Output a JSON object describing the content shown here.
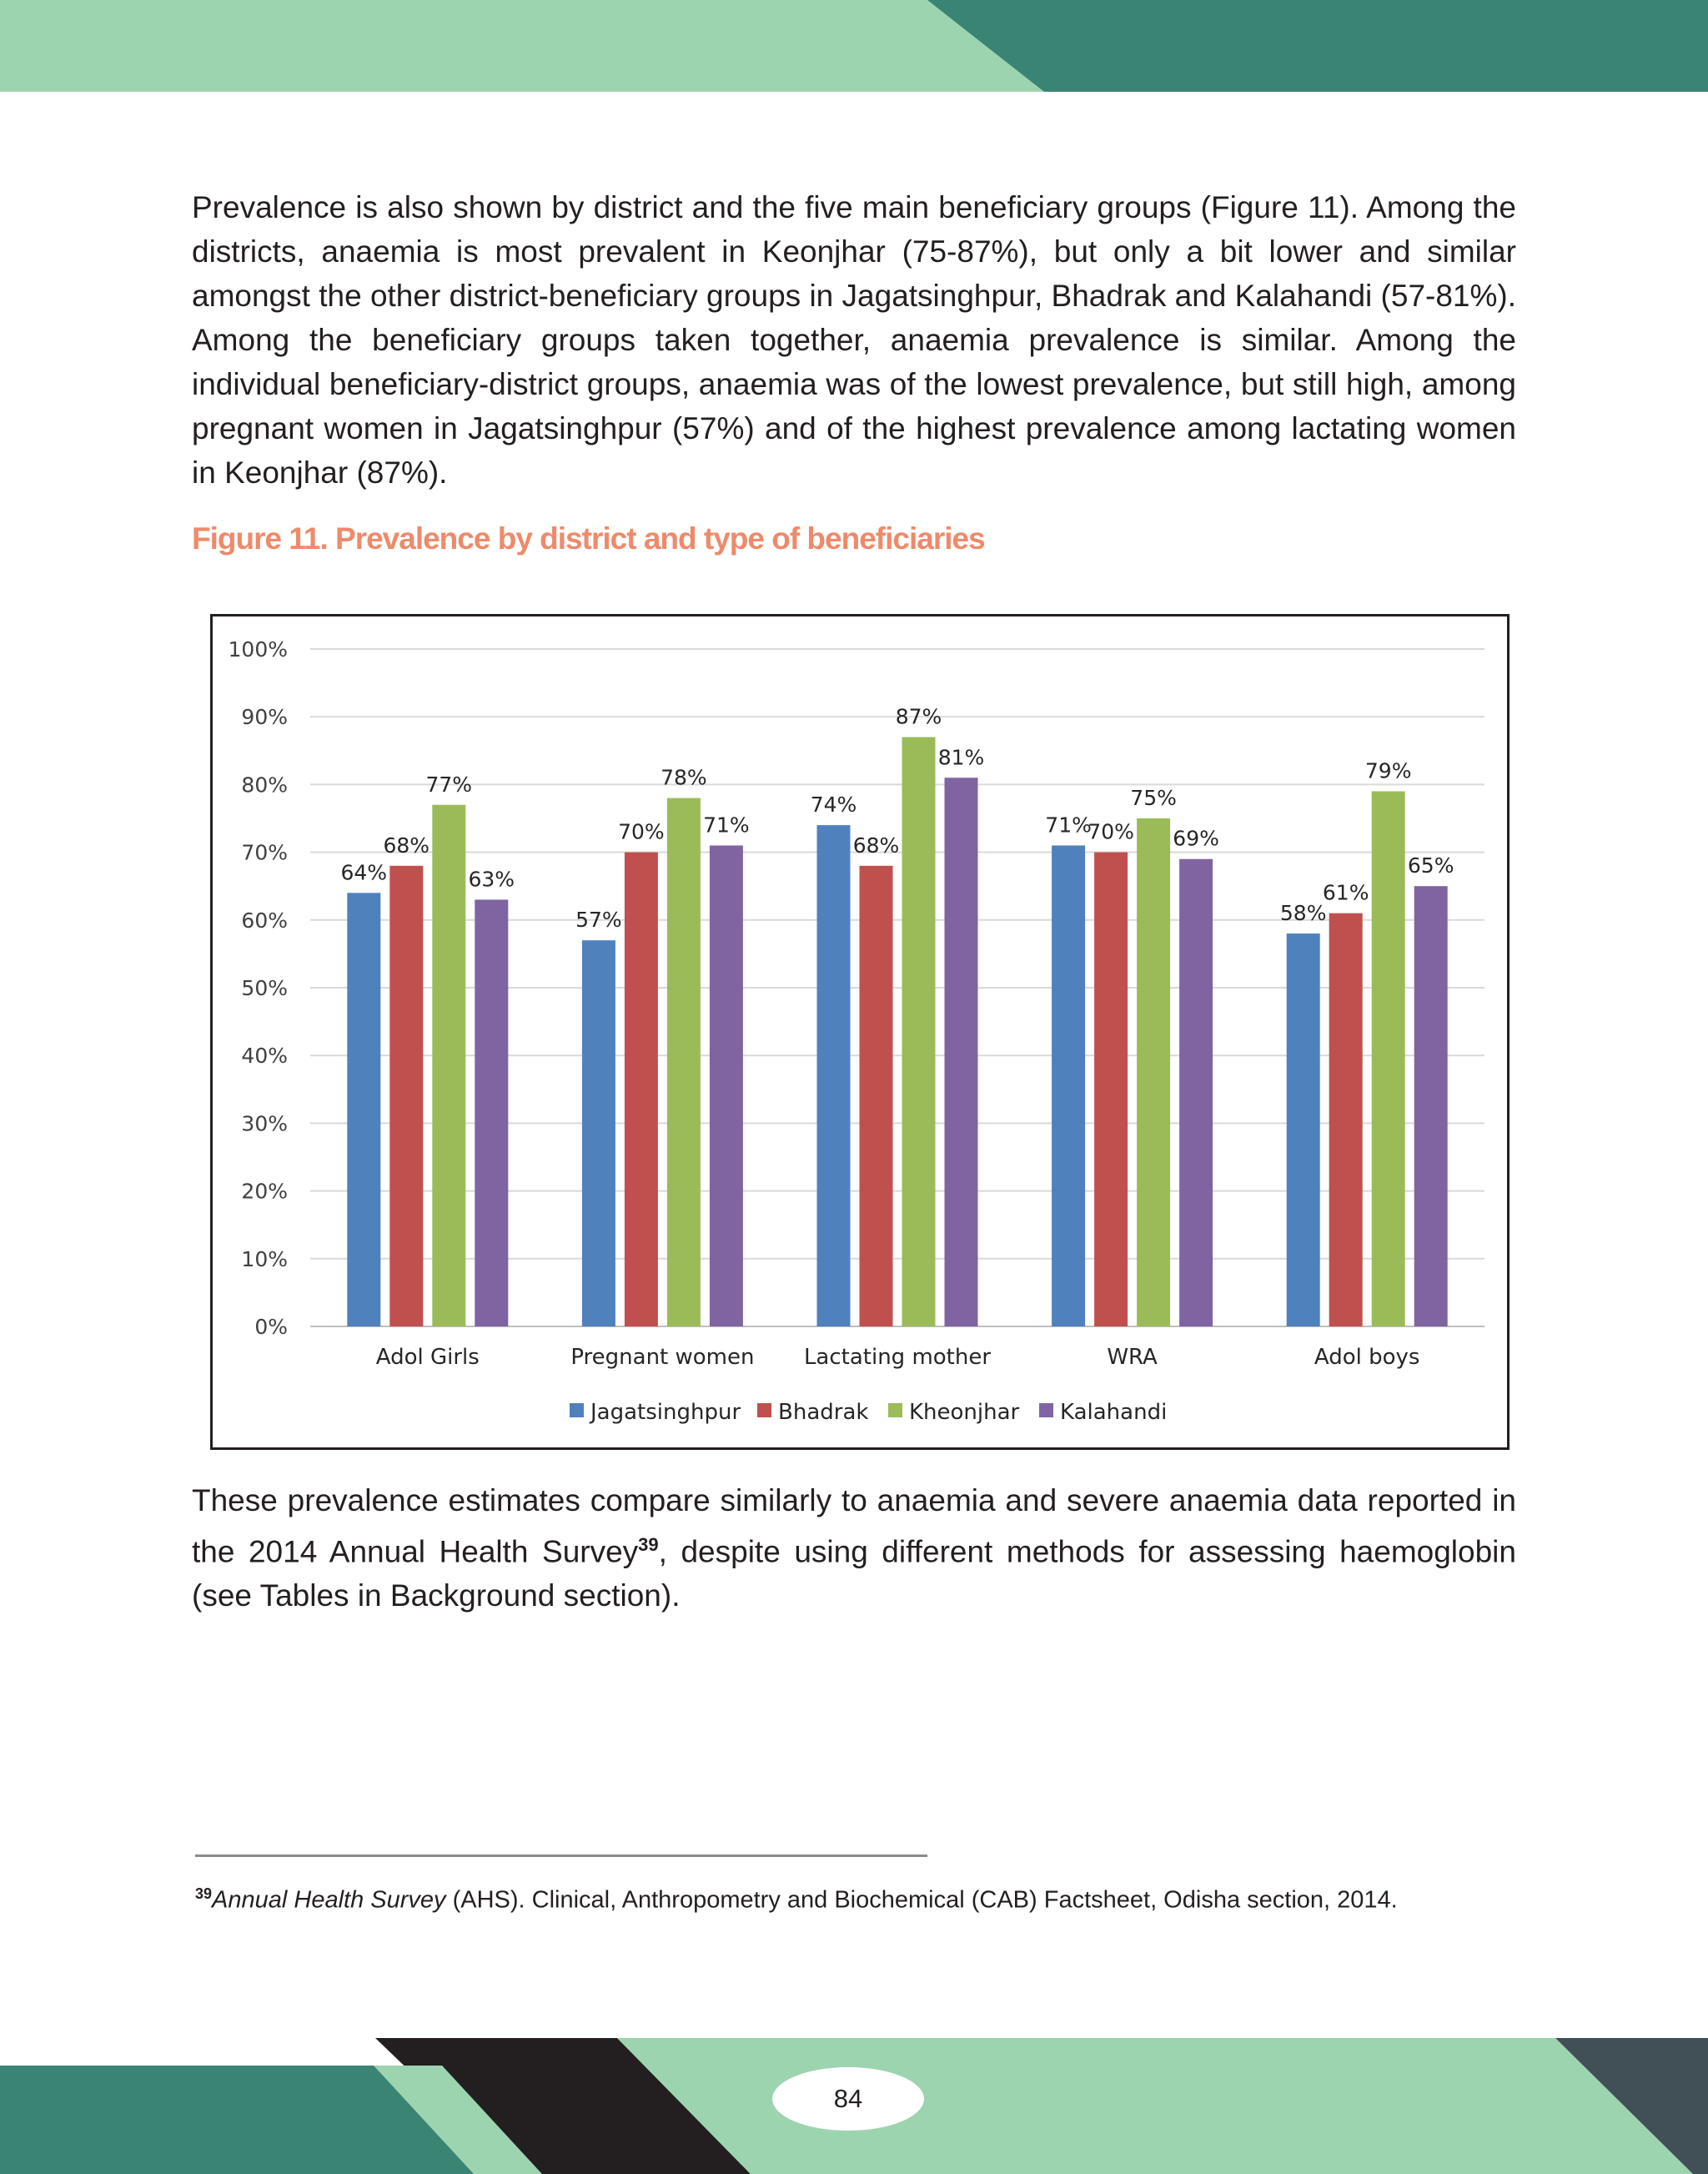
{
  "colors": {
    "band_light": "#9dd4b0",
    "band_dark": "#3a8474",
    "band_black": "#231f20",
    "band_slate": "#414f56",
    "figure_title": "#ee8a6a"
  },
  "body": {
    "paragraph1": "Prevalence is also shown by district and the five main beneficiary groups (Figure 11). Among the districts, anaemia is most prevalent in Keonjhar (75-87%), but only a bit lower and similar amongst the other district-beneficiary groups in Jagatsinghpur, Bhadrak and Kalahandi (57-81%). Among the beneficiary groups taken together, anaemia prevalence is similar. Among the individual beneficiary-district groups, anaemia was of the lowest prevalence, but still high, among pregnant women in Jagatsinghpur (57%) and of the highest prevalence among lactating women in Keonjhar (87%).",
    "figure_title": "Figure 11. Prevalence by district and type of beneficiaries",
    "paragraph2_before": "These prevalence estimates compare similarly to anaemia and severe anaemia data reported in the 2014 Annual Health Survey",
    "paragraph2_ref": "39",
    "paragraph2_after": ", despite using different methods for assessing haemoglobin (see Tables in Background section)."
  },
  "footnote": {
    "number": "39",
    "title": "Annual Health Survey",
    "text": " (AHS). Clinical, Anthropometry and Biochemical (CAB) Factsheet, Odisha section, 2014."
  },
  "page_number": "84",
  "chart_data": {
    "type": "bar",
    "title": "",
    "xlabel": "",
    "ylabel": "",
    "ylim": [
      0,
      100
    ],
    "yticks": [
      "0%",
      "10%",
      "20%",
      "30%",
      "40%",
      "50%",
      "60%",
      "70%",
      "80%",
      "90%",
      "100%"
    ],
    "grid": true,
    "legend_position": "bottom",
    "categories": [
      "Adol Girls",
      "Pregnant women",
      "Lactating mother",
      "WRA",
      "Adol boys"
    ],
    "series": [
      {
        "name": "Jagatsinghpur",
        "color": "#4f81bd",
        "values": [
          64,
          57,
          74,
          71,
          58
        ]
      },
      {
        "name": "Bhadrak",
        "color": "#c0504d",
        "values": [
          68,
          70,
          68,
          70,
          61
        ]
      },
      {
        "name": "Kheonjhar",
        "color": "#9bbb59",
        "values": [
          77,
          78,
          87,
          75,
          79
        ]
      },
      {
        "name": "Kalahandi",
        "color": "#8064a2",
        "values": [
          63,
          71,
          81,
          69,
          65
        ]
      }
    ]
  }
}
